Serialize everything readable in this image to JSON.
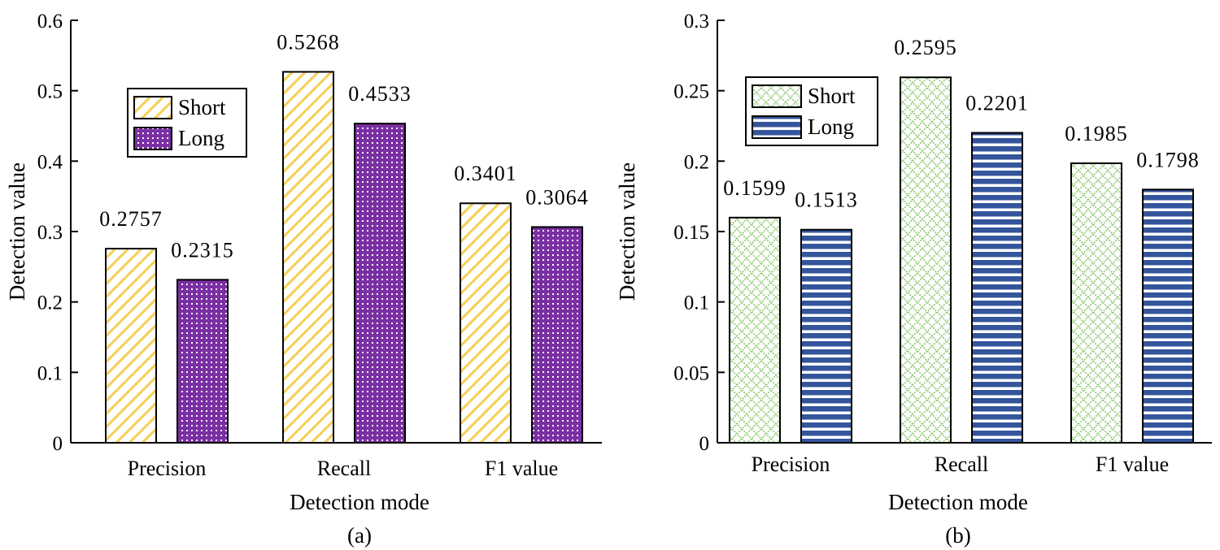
{
  "chart_data": [
    {
      "type": "bar",
      "panel_label": "(a)",
      "categories": [
        "Precision",
        "Recall",
        "F1 value"
      ],
      "series": [
        {
          "name": "Short",
          "values": [
            0.2757,
            0.5268,
            0.3401
          ],
          "value_labels": [
            "0.2757",
            "0.5268",
            "0.3401"
          ],
          "color": "#f5cf55",
          "pattern": "diagonal-stripes"
        },
        {
          "name": "Long",
          "values": [
            0.2315,
            0.4533,
            0.3064
          ],
          "value_labels": [
            "0.2315",
            "0.4533",
            "0.3064"
          ],
          "color": "#7a2fa3",
          "pattern": "dots"
        }
      ],
      "xlabel": "Detection mode",
      "ylabel": "Detection value",
      "ylim": [
        0,
        0.6
      ],
      "yticks": [
        0,
        0.1,
        0.2,
        0.3,
        0.4,
        0.5,
        0.6
      ],
      "ytick_labels": [
        "0",
        "0.1",
        "0.2",
        "0.3",
        "0.4",
        "0.5",
        "0.6"
      ],
      "legend_position": "top-left",
      "grid": false
    },
    {
      "type": "bar",
      "panel_label": "(b)",
      "categories": [
        "Precision",
        "Recall",
        "F1 value"
      ],
      "series": [
        {
          "name": "Short",
          "values": [
            0.1599,
            0.2595,
            0.1985
          ],
          "value_labels": [
            "0.1599",
            "0.2595",
            "0.1985"
          ],
          "color": "#8cc870",
          "pattern": "crosshatch"
        },
        {
          "name": "Long",
          "values": [
            0.1513,
            0.2201,
            0.1798
          ],
          "value_labels": [
            "0.1513",
            "0.2201",
            "0.1798"
          ],
          "color": "#34559b",
          "pattern": "horizontal-stripes"
        }
      ],
      "xlabel": "Detection mode",
      "ylabel": "Detection value",
      "ylim": [
        0,
        0.3
      ],
      "yticks": [
        0,
        0.05,
        0.1,
        0.15,
        0.2,
        0.25,
        0.3
      ],
      "ytick_labels": [
        "0",
        "0.05",
        "0.1",
        "0.15",
        "0.2",
        "0.25",
        "0.3"
      ],
      "legend_position": "top-left",
      "grid": false
    }
  ]
}
